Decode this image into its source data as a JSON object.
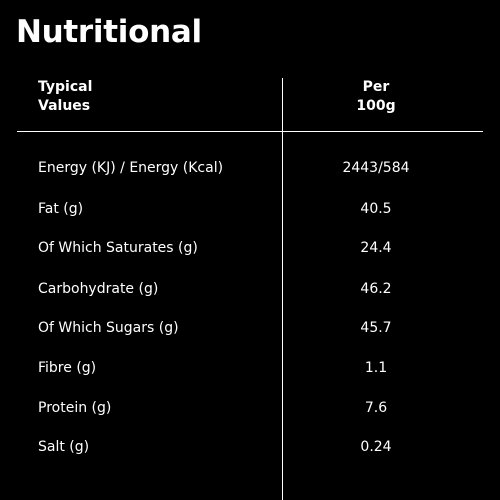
{
  "title": "Nutritional",
  "header": {
    "left_line1": "Typical",
    "left_line2": "Values",
    "right_line1": "Per",
    "right_line2": "100g"
  },
  "rows": [
    {
      "label": "Energy (KJ) / Energy (Kcal)",
      "value": "2443/584"
    },
    {
      "label": "Fat (g)",
      "value": "40.5"
    },
    {
      "label": "Of Which Saturates (g)",
      "value": "24.4"
    },
    {
      "label": "Carbohydrate (g)",
      "value": "46.2"
    },
    {
      "label": "Of Which Sugars (g)",
      "value": "45.7"
    },
    {
      "label": "Fibre (g)",
      "value": "1.1"
    },
    {
      "label": "Protein (g)",
      "value": "7.6"
    },
    {
      "label": "Salt (g)",
      "value": "0.24"
    }
  ]
}
